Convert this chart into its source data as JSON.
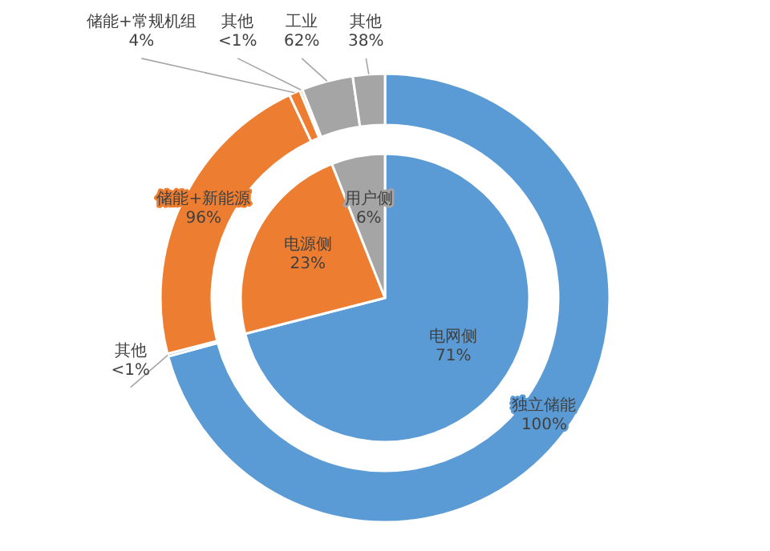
{
  "chart_data": [
    {
      "type": "pie",
      "categories": [
        "电网侧",
        "电源侧",
        "用户侧"
      ],
      "values": [
        71,
        23,
        6
      ],
      "colors": [
        "#5b9bd5",
        "#ed7d31",
        "#a5a5a5"
      ],
      "value_labels": [
        "71%",
        "23%",
        "6%"
      ]
    },
    {
      "type": "donut",
      "categories": [
        "独立储能\n100%",
        "其他\n<1%",
        "储能+新能源\n96%",
        "储能+常规机组\n4%",
        "其他\n<1%",
        "工业\n62%",
        "其他\n38%"
      ],
      "values": [
        70.8,
        0.2,
        22,
        0.8,
        0.2,
        3.7,
        2.3
      ],
      "colors": [
        "#5b9bd5",
        "#5b9bd5",
        "#ed7d31",
        "#ed7d31",
        "#ed7d31",
        "#a5a5a5",
        "#a5a5a5"
      ]
    }
  ]
}
